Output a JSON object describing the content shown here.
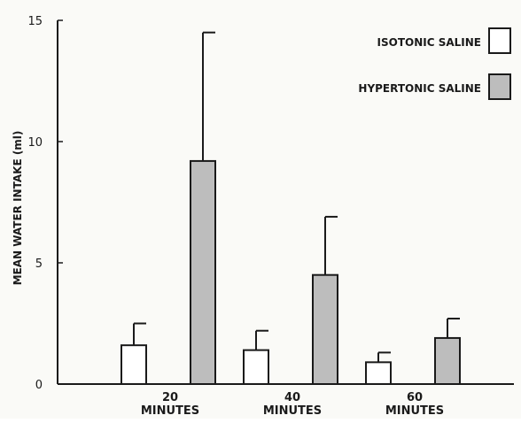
{
  "chart_data": {
    "type": "bar",
    "ylabel": "MEAN WATER INTAKE (ml)",
    "xlabel": "",
    "ylim": [
      0,
      15
    ],
    "yticks": [
      0,
      5,
      10,
      15
    ],
    "categories": [
      {
        "number": "20",
        "unit": "MINUTES"
      },
      {
        "number": "40",
        "unit": "MINUTES"
      },
      {
        "number": "60",
        "unit": "MINUTES"
      }
    ],
    "series": [
      {
        "name": "ISOTONIC SALINE",
        "color": "#ffffff",
        "values": [
          1.6,
          1.4,
          0.9
        ],
        "error_upper": [
          2.5,
          2.2,
          1.3
        ]
      },
      {
        "name": "HYPERTONIC SALINE",
        "color": "#bdbdbd",
        "values": [
          9.2,
          4.5,
          1.9
        ],
        "error_upper": [
          14.5,
          6.9,
          2.7
        ]
      }
    ],
    "legend": "top-right",
    "grid": false,
    "error_bars": "upper"
  }
}
